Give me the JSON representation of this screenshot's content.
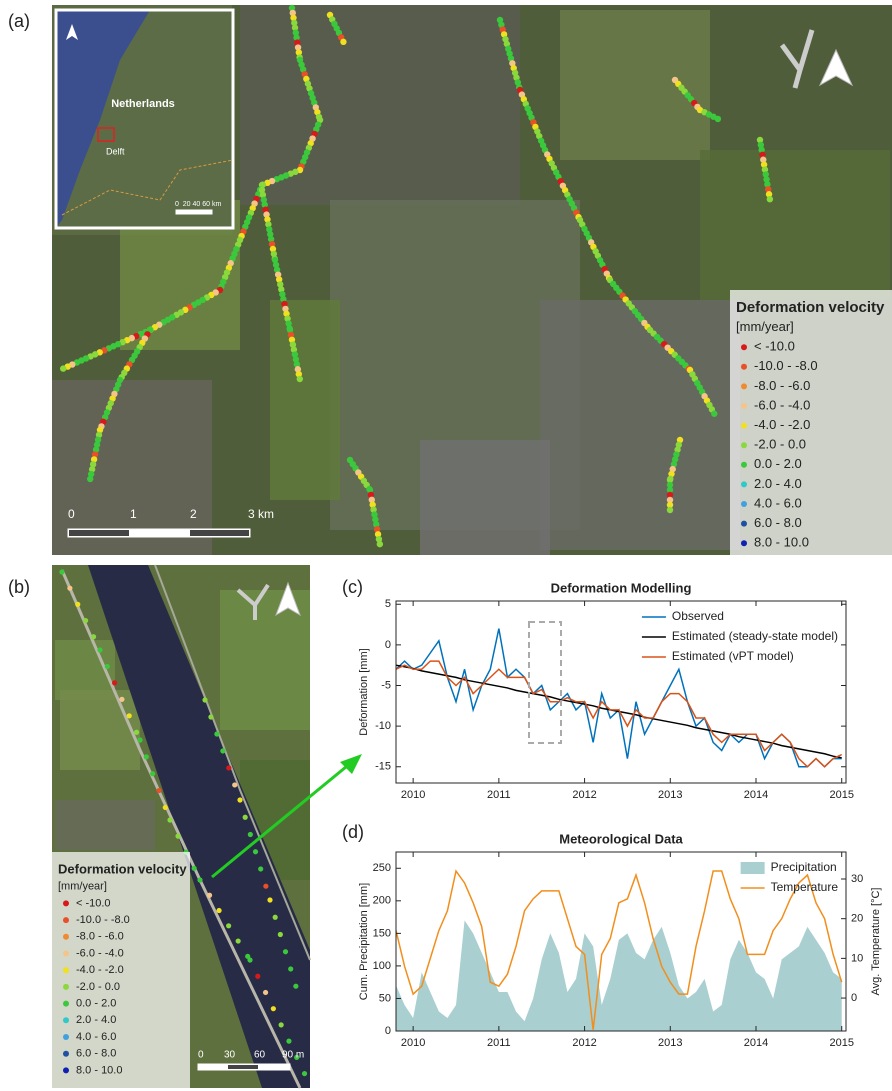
{
  "panel_labels": [
    "(a)",
    "(b)",
    "(c)",
    "(d)"
  ],
  "legend": {
    "title": "Deformation velocity",
    "unit": "[mm/year]",
    "classes": [
      {
        "label": "< -10.0",
        "color": "#d7191c"
      },
      {
        "label": "-10.0 - -8.0",
        "color": "#e8502a"
      },
      {
        "label": "-8.0 - -6.0",
        "color": "#f08a30"
      },
      {
        "label": "-6.0 - -4.0",
        "color": "#f5c48a"
      },
      {
        "label": "-4.0 - -2.0",
        "color": "#f0e020"
      },
      {
        "label": "-2.0 - 0.0",
        "color": "#8ad83c"
      },
      {
        "label": "0.0 - 2.0",
        "color": "#3cc83c"
      },
      {
        "label": "2.0 - 4.0",
        "color": "#30c8c8"
      },
      {
        "label": "4.0 - 6.0",
        "color": "#40a0e0"
      },
      {
        "label": "6.0 - 8.0",
        "color": "#2050a0"
      },
      {
        "label": "8.0 - 10.0",
        "color": "#1020b0"
      }
    ]
  },
  "map_a": {
    "inset": {
      "country": "Netherlands",
      "city": "Delft",
      "scale": "0  20 40 60 km"
    },
    "scale_labels": [
      "0",
      "1",
      "2",
      "3 km"
    ]
  },
  "map_b": {
    "scale_labels": [
      "0",
      "30",
      "60",
      "90 m"
    ]
  },
  "chart_data": [
    {
      "type": "line",
      "title": "Deformation Modelling",
      "ylabel": "Deformation [mm]",
      "x": [
        2009.8,
        2009.9,
        2010.0,
        2010.1,
        2010.2,
        2010.3,
        2010.4,
        2010.5,
        2010.6,
        2010.7,
        2010.8,
        2010.9,
        2011.0,
        2011.1,
        2011.2,
        2011.3,
        2011.4,
        2011.5,
        2011.6,
        2011.7,
        2011.8,
        2011.9,
        2012.0,
        2012.1,
        2012.2,
        2012.3,
        2012.4,
        2012.5,
        2012.6,
        2012.7,
        2012.8,
        2012.9,
        2013.0,
        2013.1,
        2013.2,
        2013.3,
        2013.4,
        2013.5,
        2013.6,
        2013.7,
        2013.8,
        2013.9,
        2014.0,
        2014.1,
        2014.2,
        2014.3,
        2014.4,
        2014.5,
        2014.6,
        2014.7,
        2014.8,
        2014.9,
        2015.0
      ],
      "xlim": [
        2009.8,
        2015.05
      ],
      "xticks": [
        2010,
        2011,
        2012,
        2013,
        2014,
        2015
      ],
      "ylim": [
        -17,
        5.4
      ],
      "yticks": [
        -15,
        -10,
        -5,
        0,
        5
      ],
      "grid": false,
      "legend": "upper right",
      "series": [
        {
          "name": "Observed",
          "color": "#0072bd",
          "values": [
            -3,
            -2,
            -3,
            -2.5,
            -1,
            0.5,
            -4,
            -7,
            -3,
            -8,
            -5,
            -3,
            2,
            -4,
            -3,
            -4,
            -6,
            -5,
            -8,
            -7,
            -6,
            -8,
            -7,
            -12,
            -6,
            -9,
            -8,
            -14,
            -7,
            -11,
            -9,
            -7,
            -5,
            -3,
            -7,
            -10,
            -9,
            -12,
            -13,
            -11,
            -12,
            -11,
            -11,
            -14,
            -12,
            -11,
            -12,
            -15,
            -15,
            -14,
            -15,
            -14,
            -14
          ]
        },
        {
          "name": "Estimated (steady-state model)",
          "color": "#000000",
          "values": [
            -2.5,
            -2.7,
            -2.9,
            -3.2,
            -3.4,
            -3.6,
            -3.8,
            -4.0,
            -4.3,
            -4.5,
            -4.7,
            -4.9,
            -5.1,
            -5.3,
            -5.6,
            -5.8,
            -6.0,
            -6.2,
            -6.4,
            -6.7,
            -6.9,
            -7.1,
            -7.3,
            -7.5,
            -7.8,
            -8.0,
            -8.2,
            -8.4,
            -8.6,
            -8.9,
            -9.1,
            -9.3,
            -9.5,
            -9.7,
            -9.9,
            -10.2,
            -10.4,
            -10.6,
            -10.8,
            -11.0,
            -11.3,
            -11.5,
            -11.7,
            -11.9,
            -12.1,
            -12.4,
            -12.6,
            -12.8,
            -13.0,
            -13.2,
            -13.4,
            -13.7,
            -13.9
          ]
        },
        {
          "name": "Estimated (vPT model)",
          "color": "#d95319",
          "values": [
            -3,
            -2.5,
            -3,
            -3,
            -2,
            -2,
            -4,
            -5,
            -4,
            -6,
            -5,
            -4,
            -3,
            -4,
            -4,
            -4,
            -6,
            -5.5,
            -7,
            -7,
            -6.5,
            -7,
            -7,
            -9,
            -7,
            -8,
            -8,
            -10,
            -8,
            -9,
            -9,
            -7,
            -6,
            -6,
            -7,
            -9,
            -9,
            -11,
            -12,
            -11,
            -11,
            -11,
            -11,
            -13,
            -12,
            -11,
            -12,
            -14,
            -15,
            -14,
            -15,
            -14,
            -13.5
          ]
        }
      ]
    },
    {
      "type": "combo",
      "title": "Meteorological Data",
      "ylabel": "Cum. Precipitation [mm]",
      "y2label": "Avg. Temperature [°C]",
      "x": [
        2009.8,
        2009.9,
        2010.0,
        2010.1,
        2010.2,
        2010.3,
        2010.4,
        2010.5,
        2010.6,
        2010.7,
        2010.8,
        2010.9,
        2011.0,
        2011.1,
        2011.2,
        2011.3,
        2011.4,
        2011.5,
        2011.6,
        2011.7,
        2011.8,
        2011.9,
        2012.0,
        2012.1,
        2012.2,
        2012.3,
        2012.4,
        2012.5,
        2012.6,
        2012.7,
        2012.8,
        2012.9,
        2013.0,
        2013.1,
        2013.2,
        2013.3,
        2013.4,
        2013.5,
        2013.6,
        2013.7,
        2013.8,
        2013.9,
        2014.0,
        2014.1,
        2014.2,
        2014.3,
        2014.4,
        2014.5,
        2014.6,
        2014.7,
        2014.8,
        2014.9,
        2015.0
      ],
      "xlim": [
        2009.8,
        2015.05
      ],
      "xticks": [
        2010,
        2011,
        2012,
        2013,
        2014,
        2015
      ],
      "ylim": [
        0,
        275
      ],
      "yticks": [
        0,
        50,
        100,
        150,
        200,
        250
      ],
      "y2lim": [
        -8.3,
        36.8
      ],
      "y2ticks": [
        0,
        10,
        20,
        30
      ],
      "grid": false,
      "legend": "upper right",
      "series": [
        {
          "name": "Precipitation",
          "type": "area",
          "color": "#a9cfd0",
          "values": [
            70,
            40,
            20,
            90,
            60,
            30,
            20,
            40,
            170,
            150,
            120,
            90,
            60,
            60,
            30,
            15,
            50,
            110,
            150,
            120,
            60,
            80,
            150,
            130,
            40,
            80,
            140,
            150,
            120,
            110,
            140,
            160,
            120,
            70,
            50,
            60,
            80,
            30,
            40,
            110,
            140,
            120,
            90,
            80,
            50,
            110,
            120,
            130,
            160,
            140,
            120,
            90,
            80
          ]
        },
        {
          "name": "Temperature",
          "type": "line",
          "axis": "y2",
          "color": "#f28e1c",
          "values": [
            17,
            8,
            1,
            3,
            10,
            17,
            22,
            32,
            29,
            24,
            18,
            4,
            3,
            6,
            13,
            22,
            25,
            27,
            27,
            27,
            20,
            13,
            11,
            -8,
            11,
            15,
            24,
            25,
            31,
            24,
            15,
            8,
            4,
            1,
            1,
            13,
            22,
            32,
            32,
            25,
            20,
            11,
            11,
            11,
            17,
            20,
            25,
            29,
            31,
            24,
            20,
            11,
            4
          ]
        }
      ]
    }
  ]
}
